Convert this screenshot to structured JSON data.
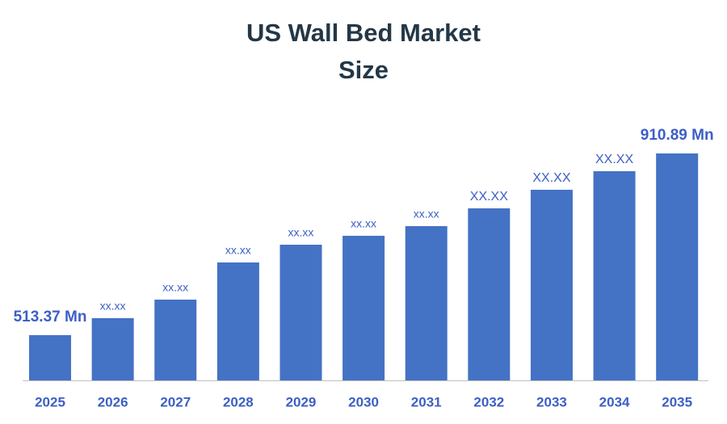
{
  "chart_data": {
    "type": "bar",
    "title": "US Wall Bed Market Size",
    "categories": [
      "2025",
      "2026",
      "2027",
      "2028",
      "2029",
      "2030",
      "2031",
      "2032",
      "2033",
      "2034",
      "2035"
    ],
    "values": [
      513.37,
      550.5,
      591.1,
      672.4,
      711.2,
      730.7,
      751.9,
      790.8,
      831.4,
      872.0,
      910.89
    ],
    "value_labels": [
      "513.37 Mn",
      "xx.xx",
      "xx.xx",
      "xx.xx",
      "xx.xx",
      "xx.xx",
      "xx.xx",
      "XX.XX",
      "XX.XX",
      "XX.XX",
      "910.89 Mn"
    ],
    "color": "#4472c4",
    "ylim": [
      414.4,
      946.2
    ]
  }
}
